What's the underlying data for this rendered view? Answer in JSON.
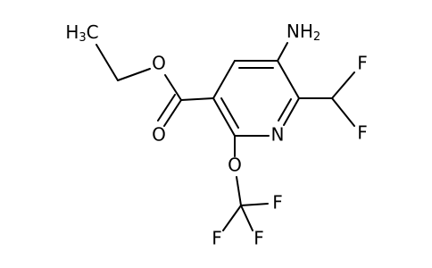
{
  "atoms": [
    [
      "H",
      "3",
      "C"
    ],
    [
      "O"
    ],
    [
      "O"
    ],
    [
      "NH",
      "2"
    ],
    [
      "N"
    ],
    [
      "F"
    ],
    [
      "F"
    ],
    [
      "O"
    ],
    [
      "F"
    ],
    [
      "F"
    ],
    [
      "F"
    ]
  ]
}
